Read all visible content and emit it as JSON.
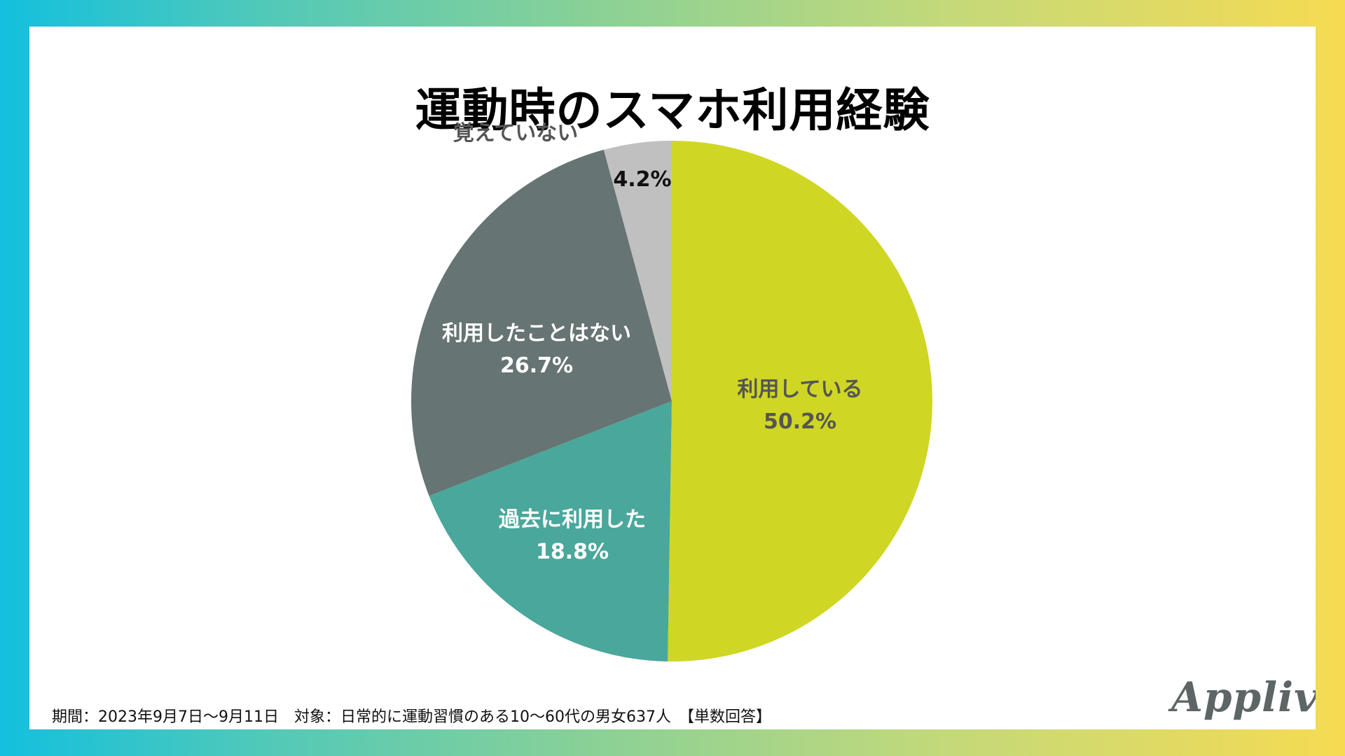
{
  "page": {
    "title": "運動時のスマホ利用経験",
    "footnote": "期間：2023年9月7日〜9月11日　対象：日常的に運動習慣のある10〜60代の男女637人　【単数回答】",
    "brand": "Appliv"
  },
  "chart_data": {
    "type": "pie",
    "title": "運動時のスマホ利用経験",
    "unit": "%",
    "start": "12 o'clock",
    "direction": "clockwise",
    "slices": [
      {
        "label": "利用している",
        "value": 50.2,
        "display": "50.2%",
        "color": "#cfd624",
        "text_color": "#555555"
      },
      {
        "label": "過去に利用した",
        "value": 18.8,
        "display": "18.8%",
        "color": "#4aa79b",
        "text_color": "#ffffff"
      },
      {
        "label": "利用したことはない",
        "value": 26.7,
        "display": "26.7%",
        "color": "#667473",
        "text_color": "#ffffff"
      },
      {
        "label": "覚えていない",
        "value": 4.2,
        "display": "4.2%",
        "color": "#c0c0c0",
        "text_color": "#555555",
        "value_text_color": "#111111"
      }
    ]
  }
}
